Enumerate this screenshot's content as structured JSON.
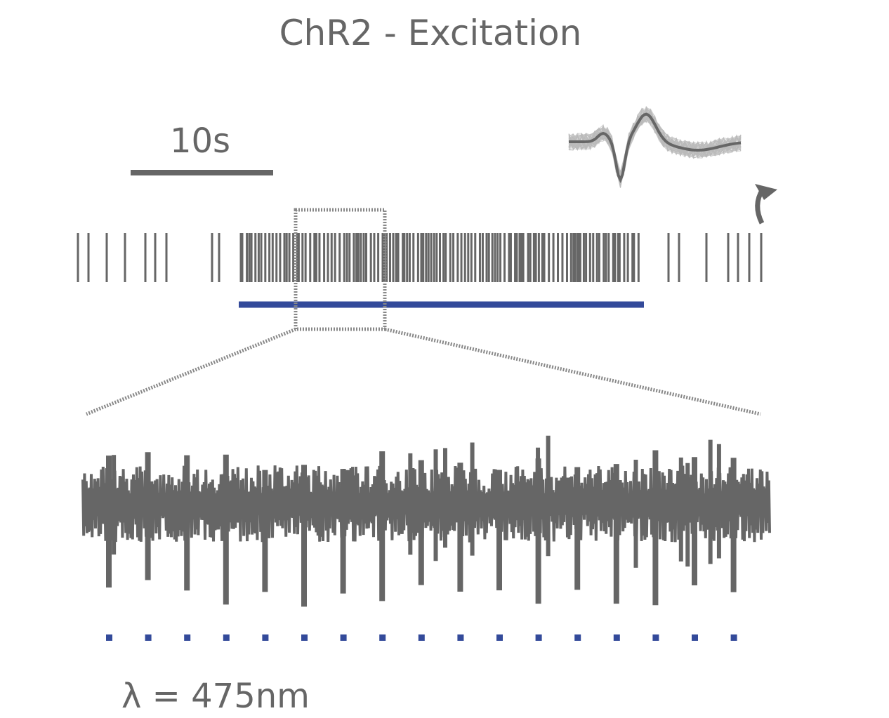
{
  "title": "ChR2 - Excitation",
  "scale_bar": {
    "label": "10s"
  },
  "stimulus": {
    "label": "λ = 475nm"
  }
}
